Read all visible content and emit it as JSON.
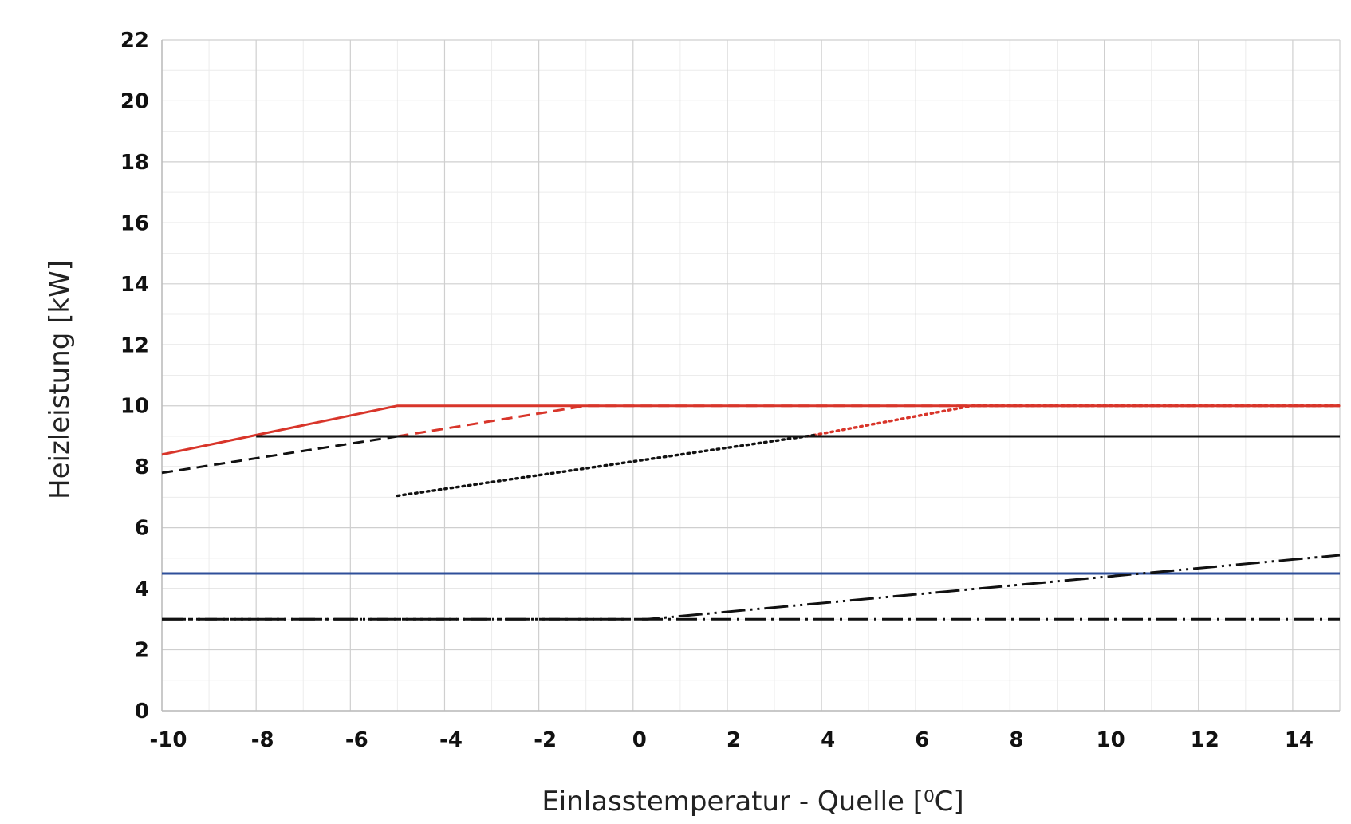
{
  "chart_data": {
    "type": "line",
    "title": "",
    "xlabel": "Einlasstemperatur - Quelle [⁰C]",
    "ylabel": "Heizleistung [kW]",
    "xlim": [
      -10,
      15
    ],
    "ylim": [
      0,
      22
    ],
    "x_ticks": [
      "-10",
      "-8",
      "-6",
      "-4",
      "-2",
      "0",
      "2",
      "4",
      "6",
      "8",
      "10",
      "12",
      "14"
    ],
    "y_ticks": [
      "0",
      "2",
      "4",
      "6",
      "8",
      "10",
      "12",
      "14",
      "16",
      "18",
      "20",
      "22"
    ],
    "grid": true,
    "legend": "none",
    "series": [
      {
        "color": "#d8352a",
        "style": "solid",
        "x": [
          -10,
          -5,
          15
        ],
        "y": [
          8.4,
          10,
          10
        ]
      },
      {
        "color": "#d8352a",
        "style": "dashed",
        "x": [
          -5,
          -1,
          15
        ],
        "y": [
          9,
          10,
          10
        ]
      },
      {
        "color": "#d8352a",
        "style": "dotted",
        "x": [
          3.7,
          7.2,
          15
        ],
        "y": [
          9,
          10,
          10
        ]
      },
      {
        "color": "#111111",
        "style": "solid",
        "x": [
          -8,
          15
        ],
        "y": [
          9,
          9
        ]
      },
      {
        "color": "#111111",
        "style": "dashed",
        "x": [
          -10,
          -5,
          15
        ],
        "y": [
          7.8,
          9,
          9
        ]
      },
      {
        "color": "#111111",
        "style": "dotted",
        "x": [
          -5,
          3.9
        ],
        "y": [
          7.05,
          9.05
        ]
      },
      {
        "color": "#2f4f9a",
        "style": "solid",
        "x": [
          -10,
          15
        ],
        "y": [
          4.5,
          4.5
        ]
      },
      {
        "color": "#111111",
        "style": "dash-dot",
        "x": [
          -10,
          15
        ],
        "y": [
          3,
          3
        ]
      },
      {
        "color": "#111111",
        "style": "dash-dot-dot",
        "x": [
          -10,
          0.3,
          15
        ],
        "y": [
          3,
          3,
          5.1
        ]
      }
    ]
  }
}
